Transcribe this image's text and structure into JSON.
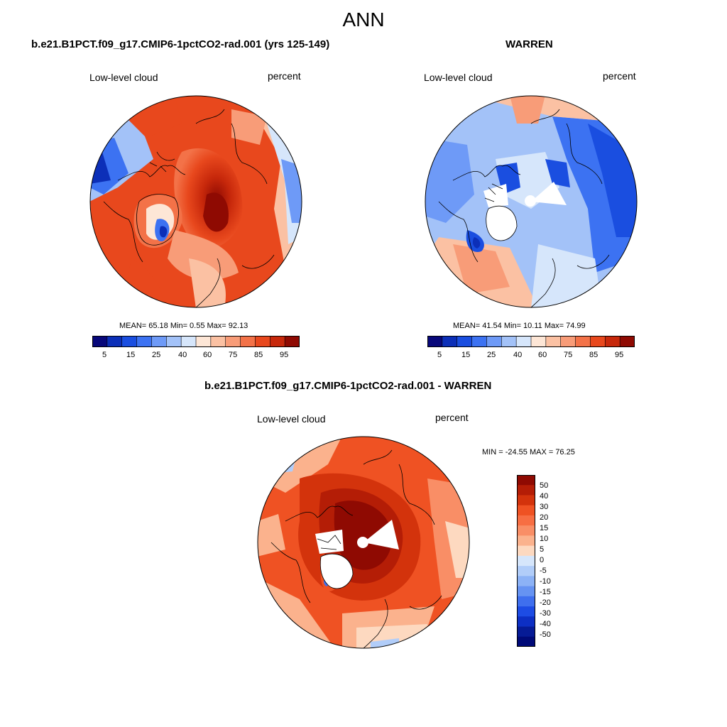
{
  "figure": {
    "title": "ANN",
    "colors": {
      "abs_scale": [
        "#08087a",
        "#0c2fb8",
        "#1a4ee0",
        "#3c72f2",
        "#6e9af7",
        "#a3c2f8",
        "#d6e6fb",
        "#fde6d6",
        "#fbc1a3",
        "#f89c78",
        "#f37248",
        "#e8481d",
        "#c7280b",
        "#8f0a02"
      ],
      "diff_scale": [
        "#8f0a02",
        "#b41d06",
        "#d3330c",
        "#ef5223",
        "#f76e43",
        "#f98e66",
        "#fbb28d",
        "#fdd9c0",
        "#d6e6fb",
        "#b1cdf9",
        "#8cb2f6",
        "#6693f2",
        "#3f6fee",
        "#1d4ce4",
        "#0d2fc4",
        "#061b96",
        "#000a78"
      ]
    }
  },
  "panels": [
    {
      "title": "b.e21.B1PCT.f09_g17.CMIP6-1pctCO2-rad.001 (yrs 125-149)",
      "variable": "Low-level cloud",
      "units": "percent",
      "stats": "MEAN=  65.18  Min=   0.55  Max=  92.13",
      "colorbar_labels": [
        "5",
        "15",
        "25",
        "40",
        "60",
        "75",
        "85",
        "95"
      ]
    },
    {
      "title": "WARREN",
      "variable": "Low-level cloud",
      "units": "percent",
      "stats": "MEAN=  41.54  Min=  10.11  Max=  74.99",
      "colorbar_labels": [
        "5",
        "15",
        "25",
        "40",
        "60",
        "75",
        "85",
        "95"
      ]
    },
    {
      "title": "b.e21.B1PCT.f09_g17.CMIP6-1pctCO2-rad.001 - WARREN",
      "variable": "Low-level cloud",
      "units": "percent",
      "stats": "MIN = -24.55 MAX =  76.25",
      "colorbar_labels": [
        "50",
        "40",
        "30",
        "20",
        "15",
        "10",
        "5",
        "0",
        "-5",
        "-10",
        "-15",
        "-20",
        "-30",
        "-40",
        "-50"
      ]
    }
  ]
}
